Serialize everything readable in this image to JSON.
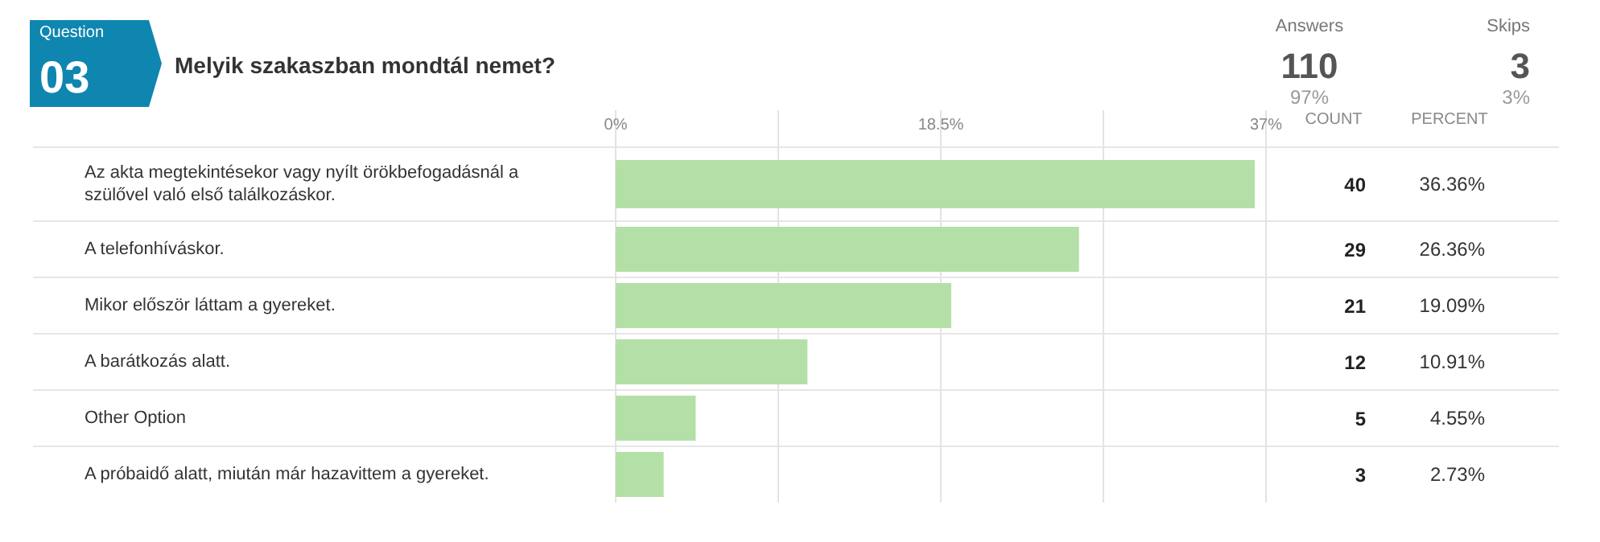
{
  "chart_data": {
    "type": "bar",
    "orientation": "horizontal",
    "title": "Melyik szakaszban mondtál nemet?",
    "categories": [
      "Az akta megtekintésekor vagy nyílt örökbefogadásnál a szülővel való első találkozáskor.",
      "A telefonhíváskor.",
      "Mikor először láttam a gyereket.",
      "A barátkozás alatt.",
      "Other Option",
      "A próbaidő alatt, miután már hazavittem a gyereket."
    ],
    "values": [
      36.36,
      26.36,
      19.09,
      10.91,
      4.55,
      2.73
    ],
    "value_labels": [
      "36.36%",
      "26.36%",
      "19.09%",
      "10.91%",
      "4.55%",
      "2.73%"
    ],
    "color": "#b3e0a6",
    "xlim": [
      0,
      37
    ],
    "xticks": [
      {
        "value": 0,
        "label": "0%"
      },
      {
        "value": 9.25,
        "label": null
      },
      {
        "value": 18.5,
        "label": "18.5%"
      },
      {
        "value": 27.75,
        "label": null
      },
      {
        "value": 37,
        "label": "37%"
      }
    ],
    "grid": "x",
    "annotations": [
      "Question",
      "03",
      "Answers",
      "110",
      "97%",
      "Skips",
      "3",
      "3%",
      "COUNT",
      "PERCENT",
      "40",
      "29",
      "21",
      "12",
      "5",
      "3"
    ]
  }
}
